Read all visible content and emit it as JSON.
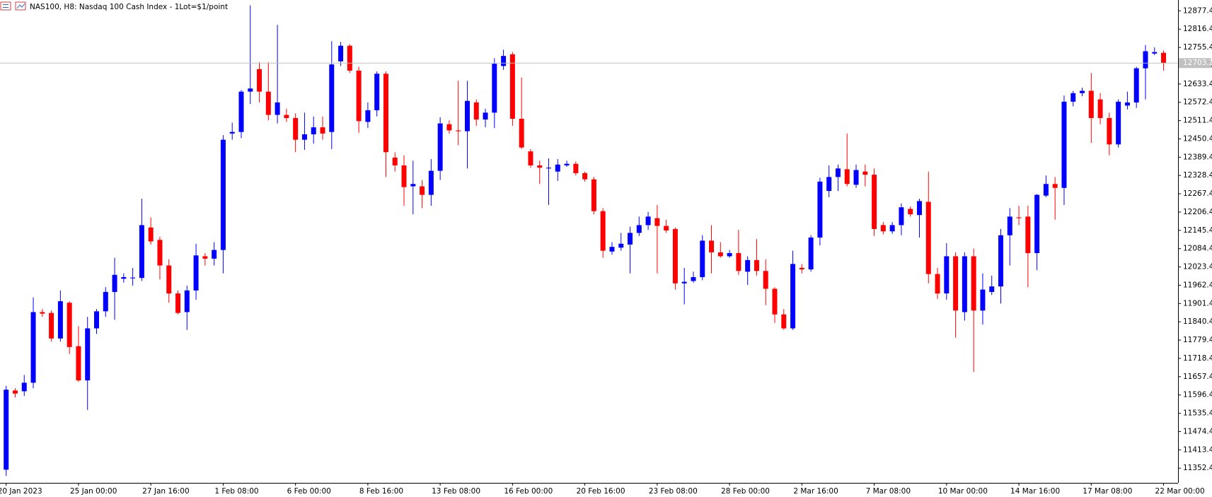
{
  "chart_data": {
    "type": "candlestick",
    "title": "NAS100, H8:  Nasdaq 100 Cash Index - 1Lot=$1/point",
    "up_color": "#0000ff",
    "down_color": "#ff0000",
    "categories": [
      "20 Jan 2023",
      null,
      null,
      null,
      null,
      null,
      null,
      null,
      "25 Jan 00:00",
      null,
      null,
      null,
      null,
      null,
      null,
      null,
      "27 Jan 16:00",
      null,
      null,
      null,
      null,
      null,
      null,
      null,
      "1 Feb 08:00",
      null,
      null,
      null,
      null,
      null,
      null,
      null,
      "6 Feb 00:00",
      null,
      null,
      null,
      null,
      null,
      null,
      null,
      "8 Feb 16:00",
      null,
      null,
      null,
      null,
      null,
      null,
      null,
      "13 Feb 08:00",
      null,
      null,
      null,
      null,
      null,
      null,
      null,
      "16 Feb 00:00",
      null,
      null,
      null,
      null,
      null,
      null,
      null,
      "20 Feb 16:00",
      null,
      null,
      null,
      null,
      null,
      null,
      null,
      "23 Feb 08:00",
      null,
      null,
      null,
      null,
      null,
      null,
      null,
      "28 Feb 00:00",
      null,
      null,
      null,
      null,
      null,
      null,
      null,
      "2 Mar 16:00",
      null,
      null,
      null,
      null,
      null,
      null,
      null,
      "7 Mar 08:00",
      null,
      null,
      null,
      null,
      null,
      null,
      null,
      "10 Mar 00:00",
      null,
      null,
      null,
      null,
      null,
      null,
      null,
      "14 Mar 16:00",
      null,
      null,
      null,
      null,
      null,
      null,
      null,
      "17 Mar 08:00",
      null,
      null,
      null,
      null,
      null,
      null,
      null,
      "22 Mar 00:00"
    ],
    "open": [
      11347.3,
      11611.4,
      11608.8,
      11637.2,
      11872.8,
      11870,
      11784.8,
      11904,
      11759,
      11645,
      11818.5,
      11875.4,
      11940,
      11984,
      11985.4,
      11986.7,
      12155,
      12113.6,
      12028.2,
      11935,
      11872.8,
      11945,
      12059,
      12051,
      12080,
      12468.3,
      12473.5,
      12608,
      12683.2,
      12608,
      12530.4,
      12530.4,
      12520,
      12447.6,
      12465.7,
      12489,
      12473.5,
      12709,
      12761,
      12678,
      12507,
      12546,
      12667.7,
      12388,
      12362,
      12292.2,
      12292.2,
      12263.8,
      12344,
      12499.4,
      12478.7,
      12476,
      12571.9,
      12515,
      12538,
      12693.5,
      12732.4,
      12517.5,
      12408.8,
      12362,
      12351.8,
      12341.4,
      12362,
      12367.3,
      12336.2,
      12315.5,
      12209.4,
      12074.8,
      12087.7,
      12098,
      12136.9,
      12162.8,
      12186,
      12160.2,
      12149.9,
      11968.6,
      11976.4,
      11989.4,
      12111,
      12072,
      12059,
      12069.6,
      12007.5,
      12046.3,
      12010,
      11950.5,
      11865,
      11818.5,
      12020.4,
      12015.2,
      12121.4,
      12276.7,
      12323.3,
      12349.2,
      12297.4,
      12341.4,
      12331,
      12162.8,
      12142.1,
      12162.8,
      12217,
      12196.4,
      12240.5,
      11999.7,
      11935,
      12059,
      11872.8,
      12059,
      11878,
      11940,
      11958.3,
      12129,
      12188.7,
      12191.3,
      12069.6,
      12261.2,
      12300,
      12287,
      12574.5,
      12603,
      12610.7,
      12582,
      12520,
      12432,
      12561.5,
      12571.9,
      12685.8,
      12735,
      12737.5
    ],
    "high": [
      11626.9,
      11619,
      11663,
      11922,
      11883,
      11878,
      11945,
      11909,
      11826,
      11857,
      11883,
      11956,
      12054,
      12002,
      12020,
      12250.8,
      12188.7,
      12124,
      12048.9,
      11945,
      11960.8,
      12100.7,
      12069.6,
      12105.8,
      12463,
      12504.5,
      12613.3,
      12895.5,
      12706.5,
      12706.5,
      12830.8,
      12551,
      12535.6,
      12538,
      12525,
      12525,
      12776.4,
      12773.8,
      12766,
      12691,
      12572,
      12675.4,
      12675.4,
      12406,
      12395.8,
      12377.7,
      12313,
      12383,
      12522.7,
      12512.3,
      12644.4,
      12644.4,
      12582,
      12551,
      12719.4,
      12747.9,
      12740,
      12654.7,
      12416.5,
      12377.7,
      12385.4,
      12383,
      12377.7,
      12375,
      12341.4,
      12323.3,
      12219.7,
      12105.8,
      12136.9,
      12157.6,
      12191.3,
      12206.8,
      12230,
      12181,
      12155,
      12020.4,
      12007.5,
      12129,
      12162.8,
      12105.8,
      12080,
      12147.3,
      12059,
      12116,
      12048.9,
      11955.8,
      11883,
      12077.4,
      12033.3,
      12129,
      12320.7,
      12362,
      12364.7,
      12468.3,
      12364.7,
      12364.7,
      12351.8,
      12173,
      12173,
      12235.3,
      12225,
      12250.8,
      12341.4,
      12020.4,
      12103,
      12072,
      12072,
      12085,
      12002,
      11994.5,
      12149.9,
      12219.7,
      12227.5,
      12227.5,
      12266.4,
      12328.5,
      12323.3,
      12595,
      12610.7,
      12621,
      12670,
      12603,
      12538,
      12582,
      12608,
      12691,
      12763.4,
      12755.7,
      12745.3
    ],
    "low": [
      11326.5,
      11588,
      11593,
      11619,
      11857,
      11774.5,
      11774.5,
      11733,
      11640,
      11546.6,
      11800,
      11857,
      11847,
      11971,
      11961,
      11976.4,
      12098,
      11981.6,
      11903.9,
      11865,
      11813.3,
      11914.2,
      12028,
      12028,
      12002,
      12447.6,
      12452.8,
      12566.7,
      12571.9,
      12512.3,
      12502,
      12507,
      12406.2,
      12414,
      12434.6,
      12447.6,
      12416.5,
      12693.5,
      12670,
      12470.9,
      12486.4,
      12525.3,
      12323.3,
      12341.4,
      12227.5,
      12199,
      12219.7,
      12227.5,
      12313,
      12468,
      12429.5,
      12351.8,
      12494,
      12489,
      12486.4,
      12680.6,
      12494,
      12416.5,
      12354.4,
      12300,
      12230.1,
      12310.3,
      12357,
      12328.5,
      12307.8,
      12199,
      12054,
      12064.4,
      12077.4,
      12002,
      12126.5,
      12147.3,
      12002,
      12137,
      11947.9,
      11898.7,
      11971,
      11979,
      12002,
      12054,
      12054,
      11997,
      11963.4,
      11994.5,
      11896,
      11836.6,
      11813.3,
      11813.3,
      12002,
      12007.5,
      12095.5,
      12256,
      12276.7,
      12292.2,
      12287,
      12292.2,
      12126.5,
      12131.7,
      12134,
      12129,
      12191,
      12121.4,
      11968.6,
      11916.8,
      11914,
      11787.4,
      11844.4,
      11673.5,
      11831.4,
      11929.8,
      11901.3,
      12028.2,
      12162.8,
      11955.7,
      12012.6,
      12256,
      12181,
      12230,
      12558.9,
      12592.6,
      12437.2,
      12499.4,
      12395.8,
      12421.7,
      12548.5,
      12553.7,
      12582,
      12729.8,
      12678
    ],
    "close": [
      11614,
      11601,
      11637.2,
      11872.8,
      11867.6,
      11784.8,
      11909,
      11756.3,
      11645,
      11818.5,
      11875.4,
      11940,
      11997,
      11989.4,
      11988,
      12162.8,
      12108.4,
      12028.2,
      11935,
      11870,
      11945,
      12061.8,
      12051,
      12080,
      12447.6,
      12473.5,
      12608,
      12618.4,
      12608,
      12530.4,
      12571.9,
      12520,
      12447.6,
      12465.7,
      12489,
      12468.3,
      12698.7,
      12761,
      12678,
      12509.7,
      12546,
      12667.7,
      12406.2,
      12362,
      12289.6,
      12300,
      12263.8,
      12344,
      12502,
      12478.7,
      12476,
      12577,
      12515,
      12538,
      12701,
      12727,
      12517.5,
      12421.7,
      12362,
      12354.4,
      12354.4,
      12364.7,
      12367.3,
      12336.2,
      12315.5,
      12209.4,
      12077.4,
      12090.3,
      12100.7,
      12136.9,
      12162.8,
      12191.3,
      12160.2,
      12145,
      11968.6,
      11973.8,
      11989.4,
      12111,
      12072,
      12059,
      12069.6,
      12010,
      12046.3,
      12010,
      11950.5,
      11865,
      11818.5,
      12033.3,
      12015.2,
      12121.4,
      12307.8,
      12323.3,
      12351.8,
      12300,
      12346.6,
      12331,
      12149.9,
      12142.1,
      12162.8,
      12222.3,
      12199,
      12243,
      11999.7,
      11935,
      12059,
      11878,
      12059,
      11878,
      11947.9,
      11958.3,
      12129,
      12191.3,
      12186,
      12069.6,
      12263.8,
      12300,
      12287,
      12574.5,
      12603,
      12610.7,
      12520,
      12520,
      12432,
      12574.5,
      12571.9,
      12685.8,
      12742.7,
      12740,
      12703.2
    ],
    "ylim": [
      11303.3,
      12913.6
    ],
    "yticks": [
      11352.4,
      11413.4,
      11474.4,
      11535.4,
      11596.4,
      11657.4,
      11718.4,
      11779.4,
      11840.4,
      11901.4,
      11962.4,
      12023.4,
      12084.4,
      12145.4,
      12206.4,
      12267.4,
      12328.4,
      12389.4,
      12450.4,
      12511.4,
      12572.4,
      12633.4,
      12694.4,
      12755.4,
      12816.4,
      12877.4
    ]
  }
}
